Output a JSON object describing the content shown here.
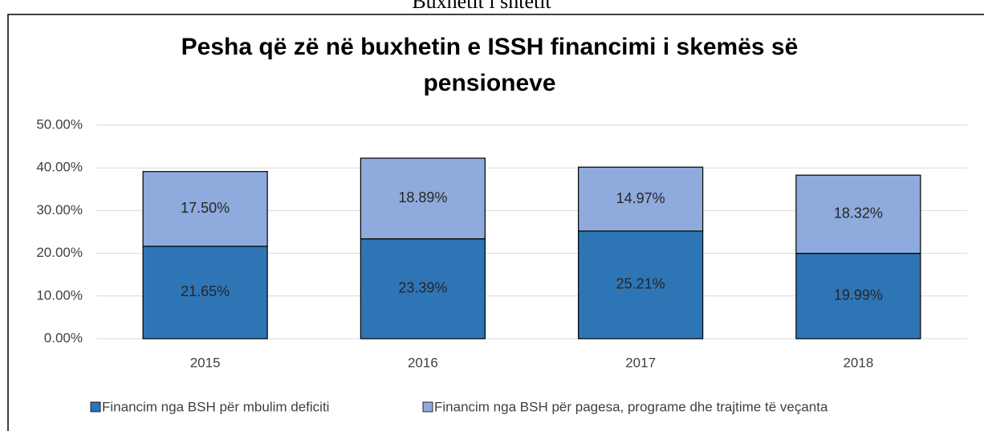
{
  "header_text": "Buxhetit i shtetit",
  "chart_data": {
    "type": "stacked_bar",
    "title": [
      "Pesha që zë në buxhetin e ISSH financimi i skemës së",
      "pensioneve"
    ],
    "categories": [
      "2015",
      "2016",
      "2017",
      "2018"
    ],
    "series": [
      {
        "name": "Financim nga BSH për mbulim deficiti",
        "color": "#2e75b6",
        "values": [
          21.65,
          23.39,
          25.21,
          19.99
        ],
        "value_labels": [
          "21.65%",
          "23.39%",
          "25.21%",
          "19.99%"
        ]
      },
      {
        "name": "Financim nga BSH për pagesa, programe dhe trajtime të veçanta",
        "color": "#8faadc",
        "values": [
          17.5,
          18.89,
          14.97,
          18.32
        ],
        "value_labels": [
          "17.50%",
          "18.89%",
          "14.97%",
          "18.32%"
        ]
      }
    ],
    "ylim": [
      0,
      50
    ],
    "yticks": [
      {
        "value": 0,
        "label": "0.00%"
      },
      {
        "value": 10,
        "label": "10.00%"
      },
      {
        "value": 20,
        "label": "20.00%"
      },
      {
        "value": 30,
        "label": "30.00%"
      },
      {
        "value": 40,
        "label": "40.00%"
      },
      {
        "value": 50,
        "label": "50.00%"
      }
    ],
    "grid": true,
    "legend": "bottom"
  }
}
